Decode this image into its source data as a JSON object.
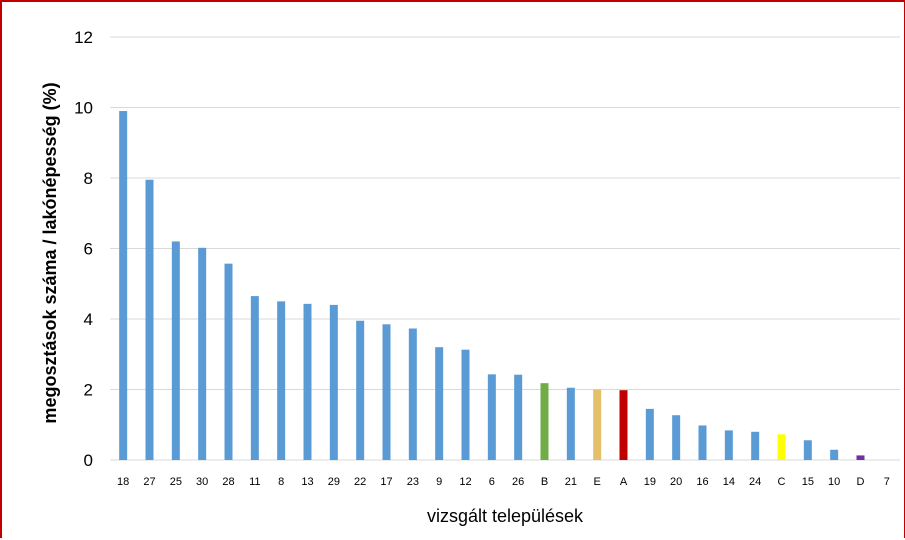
{
  "chart_data": {
    "type": "bar",
    "title": "",
    "xlabel": "vizsgált települések",
    "ylabel": "megosztások száma / lakónépesség (%)",
    "ylim": [
      0,
      12
    ],
    "yticks": [
      0,
      2,
      4,
      6,
      8,
      10,
      12
    ],
    "grid": true,
    "legend": "none",
    "default_color": "#5b9bd5",
    "categories": [
      "18",
      "27",
      "25",
      "30",
      "28",
      "11",
      "8",
      "13",
      "29",
      "22",
      "17",
      "23",
      "9",
      "12",
      "6",
      "26",
      "B",
      "21",
      "E",
      "A",
      "19",
      "20",
      "16",
      "14",
      "24",
      "C",
      "15",
      "10",
      "D",
      "7"
    ],
    "values": [
      9.9,
      7.95,
      6.2,
      6.02,
      5.57,
      4.65,
      4.5,
      4.43,
      4.4,
      3.95,
      3.85,
      3.73,
      3.2,
      3.13,
      2.43,
      2.42,
      2.18,
      2.05,
      2.0,
      1.98,
      1.45,
      1.27,
      0.98,
      0.84,
      0.8,
      0.73,
      0.56,
      0.29,
      0.13,
      0
    ],
    "highlight_colors": {
      "B": "#70ad47",
      "E": "#e5c06a",
      "A": "#c00000",
      "C": "#ffff00",
      "D": "#7030a0"
    }
  }
}
